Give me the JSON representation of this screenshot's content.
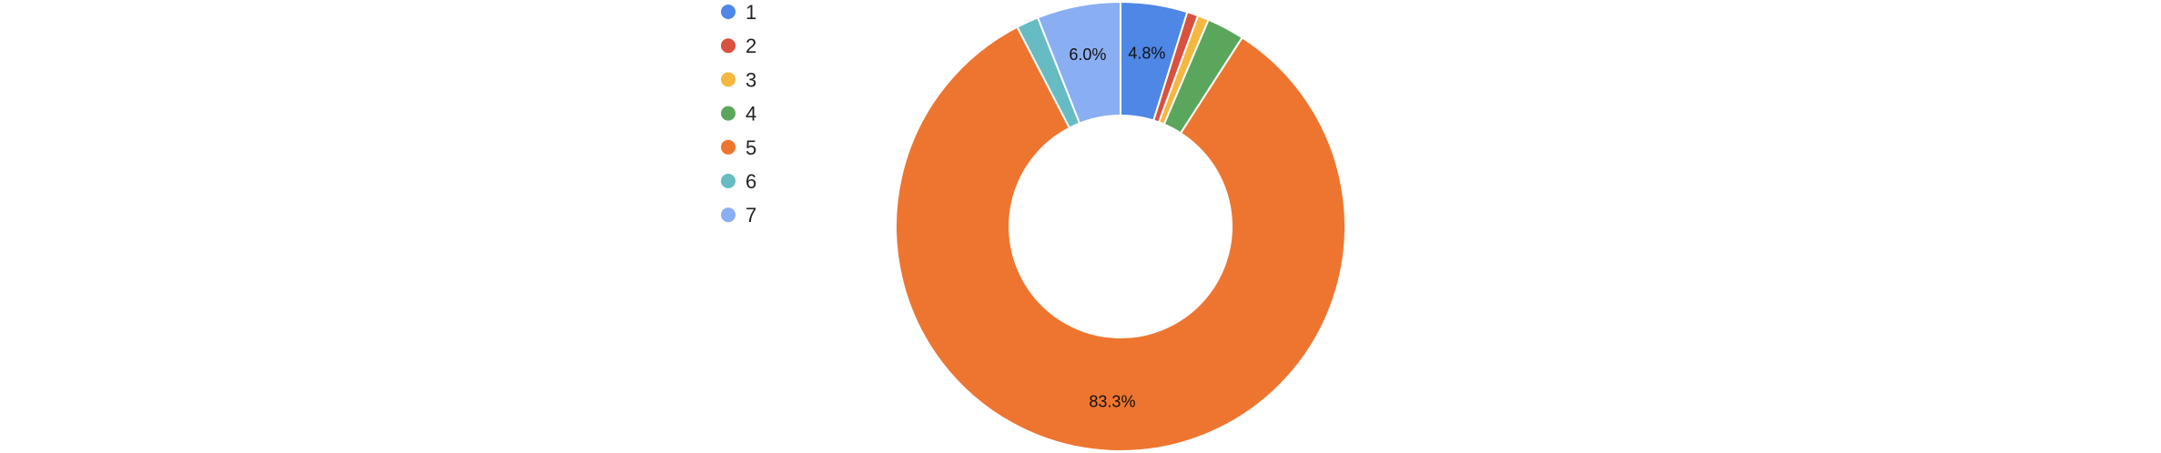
{
  "chart_data": {
    "type": "pie",
    "donut": true,
    "legend_position": "top-left",
    "series": [
      {
        "name": "1",
        "value": 4.8,
        "color": "#4f87e6",
        "label": "4.8%"
      },
      {
        "name": "2",
        "value": 0.8,
        "color": "#d9513f",
        "label": ""
      },
      {
        "name": "3",
        "value": 0.8,
        "color": "#f4b740",
        "label": ""
      },
      {
        "name": "4",
        "value": 2.7,
        "color": "#5aa65c",
        "label": ""
      },
      {
        "name": "5",
        "value": 83.3,
        "color": "#ee7530",
        "label": "83.3%"
      },
      {
        "name": "6",
        "value": 1.6,
        "color": "#66bcc2",
        "label": ""
      },
      {
        "name": "7",
        "value": 6.0,
        "color": "#8aaef2",
        "label": "6.0%"
      }
    ]
  }
}
